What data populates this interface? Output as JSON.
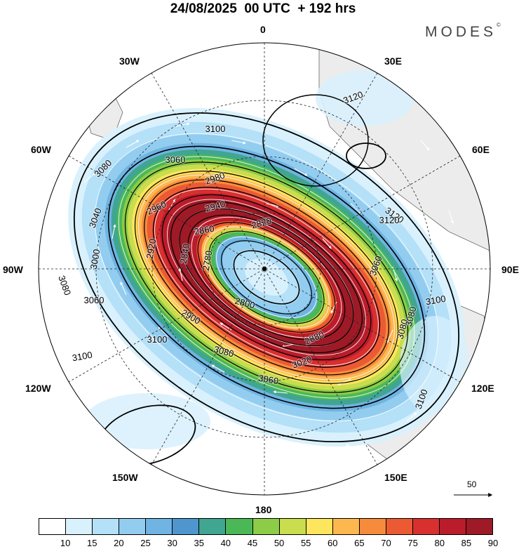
{
  "header": {
    "title": "24/08/2025  00 UTC  + 192 hrs",
    "logo": "MODES",
    "logo_mark": "©"
  },
  "map": {
    "projection": "south-polar-stereographic",
    "longitude_labels": {
      "n0": "0",
      "n30e": "30E",
      "n60e": "60E",
      "n90e": "90E",
      "n120e": "120E",
      "n150e": "150E",
      "n180": "180",
      "n150w": "150W",
      "n120w": "120W",
      "n90w": "90W",
      "n60w": "60W",
      "n30w": "30W"
    },
    "field_shaded": "wind speed",
    "field_contoured": "geopotential height",
    "contour_labels": [
      "3120",
      "3120",
      "3120",
      "3100",
      "3100",
      "3100",
      "3100",
      "3100",
      "3080",
      "3080",
      "3080",
      "3080",
      "3080",
      "3060",
      "3060",
      "3060",
      "3060",
      "3040",
      "3020",
      "3000",
      "2980",
      "2960",
      "2940",
      "2920",
      "2900",
      "2880",
      "2860",
      "2840",
      "2820",
      "2800",
      "2780"
    ],
    "vector_scale": {
      "label": "50"
    }
  },
  "legend": {
    "colors": [
      "#ffffff",
      "#d9f1fd",
      "#b4e0f8",
      "#92cdf0",
      "#6fb4e2",
      "#4f96cf",
      "#40a591",
      "#4bb857",
      "#8ccc47",
      "#c9dd4e",
      "#fde55d",
      "#fcb84f",
      "#f78b3c",
      "#ec5a34",
      "#d8302e",
      "#bb1c2b",
      "#9e1a26"
    ],
    "ticks": [
      "10",
      "15",
      "20",
      "25",
      "30",
      "35",
      "40",
      "45",
      "50",
      "55",
      "60",
      "65",
      "70",
      "75",
      "80",
      "85",
      "90"
    ]
  }
}
